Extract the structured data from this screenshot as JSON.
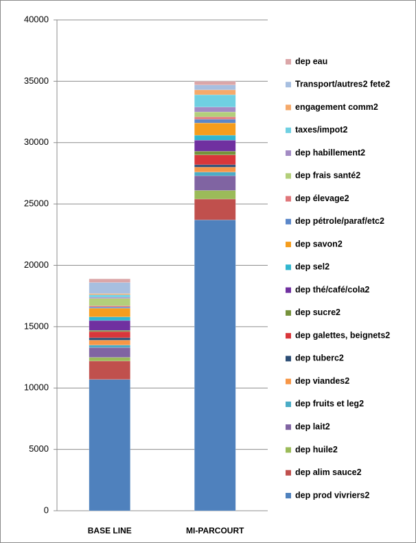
{
  "chart_data": {
    "type": "stacked_bar",
    "categories": [
      "BASE LINE",
      "MI-PARCOURT"
    ],
    "ylim": [
      0,
      40000
    ],
    "yticks": [
      0,
      5000,
      10000,
      15000,
      20000,
      25000,
      30000,
      35000,
      40000
    ],
    "grid": true,
    "legend": "right",
    "series": [
      {
        "name": "dep prod vivriers2",
        "color": "#4f81bd",
        "values": [
          10700,
          23700
        ]
      },
      {
        "name": "dep alim sauce2",
        "color": "#c0504d",
        "values": [
          1500,
          1700
        ]
      },
      {
        "name": "dep huile2",
        "color": "#9bbb59",
        "values": [
          300,
          700
        ]
      },
      {
        "name": "dep lait2",
        "color": "#8064a2",
        "values": [
          800,
          1200
        ]
      },
      {
        "name": "dep fruits et leg2",
        "color": "#4bacc6",
        "values": [
          200,
          300
        ]
      },
      {
        "name": "dep viandes2",
        "color": "#f79646",
        "values": [
          400,
          400
        ]
      },
      {
        "name": "dep tuberc2",
        "color": "#2c4d75",
        "values": [
          200,
          200
        ]
      },
      {
        "name": "dep galettes, beignets2",
        "color": "#d9363a",
        "values": [
          500,
          800
        ]
      },
      {
        "name": "dep sucre2",
        "color": "#76923c",
        "values": [
          100,
          300
        ]
      },
      {
        "name": "dep thé/café/cola2",
        "color": "#7030a0",
        "values": [
          800,
          900
        ]
      },
      {
        "name": "dep sel2",
        "color": "#31b6cf",
        "values": [
          300,
          400
        ]
      },
      {
        "name": "dep savon2",
        "color": "#f59d1d",
        "values": [
          700,
          1000
        ]
      },
      {
        "name": "dep pétrole/paraf/etc2",
        "color": "#5b87c9",
        "values": [
          100,
          300
        ]
      },
      {
        "name": "dep élevage2",
        "color": "#e0767a",
        "values": [
          100,
          200
        ]
      },
      {
        "name": "dep frais santé2",
        "color": "#b3cf7a",
        "values": [
          600,
          400
        ]
      },
      {
        "name": "dep habillement2",
        "color": "#a38bc4",
        "values": [
          100,
          400
        ]
      },
      {
        "name": "taxes/impot2",
        "color": "#6fd0e2",
        "values": [
          200,
          1000
        ]
      },
      {
        "name": "engagement comm2",
        "color": "#f5a96a",
        "values": [
          100,
          400
        ]
      },
      {
        "name": "Transport/autres2 fete2",
        "color": "#a7bfe0",
        "values": [
          900,
          400
        ]
      },
      {
        "name": "dep eau",
        "color": "#dba6a8",
        "values": [
          300,
          300
        ]
      }
    ]
  }
}
